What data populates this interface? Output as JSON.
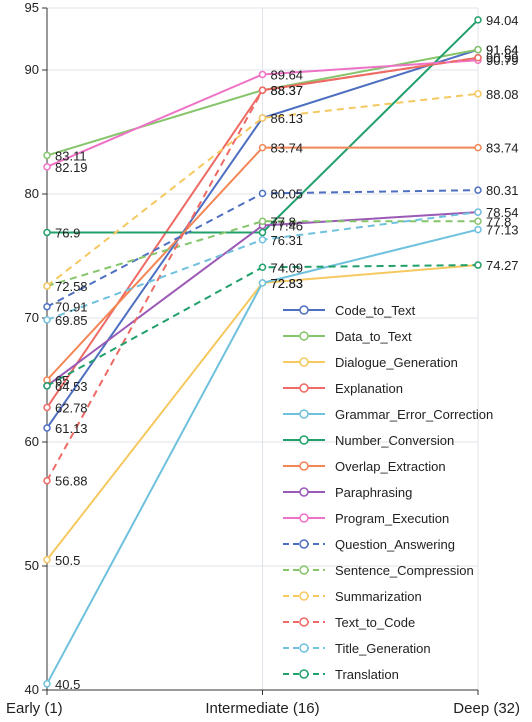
{
  "chart_data": {
    "type": "line",
    "title": "",
    "xlabel": "",
    "ylabel": "",
    "categories": [
      "Early (1)",
      "Intermediate (16)",
      "Deep (32)"
    ],
    "ylim": [
      40,
      95
    ],
    "yticks": [
      40,
      50,
      60,
      70,
      80,
      90,
      95
    ],
    "grid": true,
    "legend_position": "bottom-right",
    "series": [
      {
        "name": "Code_to_Text",
        "values": [
          61.13,
          86.13,
          91.64
        ],
        "labels": [
          "61.13",
          "86.13",
          "91.64"
        ],
        "color": "#4e6fc1",
        "dash": false
      },
      {
        "name": "Data_to_Text",
        "values": [
          83.11,
          88.37,
          91.64
        ],
        "labels": [
          "83.11",
          "88.37",
          "91.64"
        ],
        "color": "#86c56c",
        "dash": false
      },
      {
        "name": "Dialogue_Generation",
        "values": [
          50.5,
          72.83,
          74.27
        ],
        "labels": [
          "50.5",
          "72.83",
          "74.27"
        ],
        "color": "#f6c860",
        "dash": false
      },
      {
        "name": "Explanation",
        "values": [
          62.78,
          88.37,
          90.99
        ],
        "labels": [
          "62.78",
          "88.37",
          "90.99"
        ],
        "color": "#ee6a64",
        "dash": false
      },
      {
        "name": "Grammar_Error_Correction",
        "values": [
          40.5,
          72.83,
          77.13
        ],
        "labels": [
          "40.5",
          "72.83",
          "77.13"
        ],
        "color": "#6fc1dd",
        "dash": false
      },
      {
        "name": "Number_Conversion",
        "values": [
          76.9,
          76.9,
          94.04
        ],
        "labels": [
          "76.9",
          "",
          "94.04"
        ],
        "color": "#22a06b",
        "dash": false
      },
      {
        "name": "Overlap_Extraction",
        "values": [
          65,
          83.74,
          83.74
        ],
        "labels": [
          "65",
          "83.74",
          "83.74"
        ],
        "color": "#f48555",
        "dash": false
      },
      {
        "name": "Paraphrasing",
        "values": [
          64.53,
          77.46,
          78.54
        ],
        "labels": [
          "64.53",
          "77.46",
          "78.54"
        ],
        "color": "#9b59b6",
        "dash": false
      },
      {
        "name": "Program_Execution",
        "values": [
          82.19,
          89.64,
          90.79
        ],
        "labels": [
          "82.19",
          "89.64",
          "90.79"
        ],
        "color": "#ee73c6",
        "dash": false
      },
      {
        "name": "Question_Answering",
        "values": [
          70.91,
          80.05,
          80.31
        ],
        "labels": [
          "70.91",
          "80.05",
          "80.31"
        ],
        "color": "#4e6fc1",
        "dash": true
      },
      {
        "name": "Sentence_Compression",
        "values": [
          72.58,
          77.8,
          77.8
        ],
        "labels": [
          "72.58",
          "77.8",
          "77.8"
        ],
        "color": "#86c56c",
        "dash": true
      },
      {
        "name": "Summarization",
        "values": [
          72.58,
          86.13,
          88.08
        ],
        "labels": [
          "",
          "",
          "88.08"
        ],
        "color": "#f6c860",
        "dash": true
      },
      {
        "name": "Text_to_Code",
        "values": [
          56.88,
          88.37,
          90.99
        ],
        "labels": [
          "56.88",
          "",
          ""
        ],
        "color": "#ee6a64",
        "dash": true
      },
      {
        "name": "Title_Generation",
        "values": [
          69.85,
          76.31,
          78.54
        ],
        "labels": [
          "69.85",
          "76.31",
          ""
        ],
        "color": "#6fc1dd",
        "dash": true
      },
      {
        "name": "Translation",
        "values": [
          64.53,
          74.09,
          74.27
        ],
        "labels": [
          "",
          "74.09",
          ""
        ],
        "color": "#22a06b",
        "dash": true
      }
    ]
  }
}
